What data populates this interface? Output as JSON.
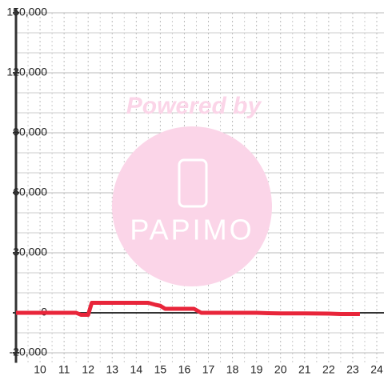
{
  "chart_data": {
    "type": "line",
    "x": [
      9,
      11.5,
      11.7,
      12,
      12.15,
      12.5,
      13,
      14,
      14.5,
      14.8,
      15,
      15.2,
      16,
      16.4,
      16.7,
      17,
      18,
      19,
      19.5,
      20,
      21,
      22,
      22.5,
      23,
      23.3
    ],
    "series": [
      {
        "color": "#e8253a",
        "values": [
          0,
          0,
          -1000,
          -1000,
          5000,
          5000,
          5000,
          5000,
          5000,
          4000,
          3500,
          2000,
          2000,
          2000,
          0,
          0,
          0,
          0,
          -200,
          -300,
          -300,
          -400,
          -600,
          -600,
          -600
        ]
      }
    ],
    "xlim": [
      9,
      24.3
    ],
    "xticks": [
      10,
      11,
      12,
      13,
      14,
      15,
      16,
      17,
      18,
      19,
      20,
      21,
      22,
      23,
      24
    ],
    "x_minor_ticks": [
      9.5,
      10.5,
      11.5,
      12.5,
      13.5,
      14.5,
      15.5,
      16.5,
      17.5,
      18.5,
      19.5,
      20.5,
      21.5,
      22.5,
      23.5
    ],
    "ylim": [
      -25000,
      150000
    ],
    "yticks": [
      {
        "value": -20000,
        "label": "-20,000"
      },
      0,
      {
        "value": 30000,
        "label": "30,000"
      },
      {
        "value": 60000,
        "label": "60,000"
      },
      {
        "value": 90000,
        "label": "90,000"
      },
      {
        "value": 120000,
        "label": "120,000"
      },
      {
        "value": 150000,
        "label": "150,000"
      }
    ],
    "y_minor_ticks": [
      -10000,
      10000,
      20000,
      40000,
      50000,
      70000,
      80000,
      100000,
      110000,
      130000,
      140000
    ],
    "grid": true,
    "watermark": {
      "line1": "Powered by",
      "line2": "PAPIMO"
    }
  }
}
